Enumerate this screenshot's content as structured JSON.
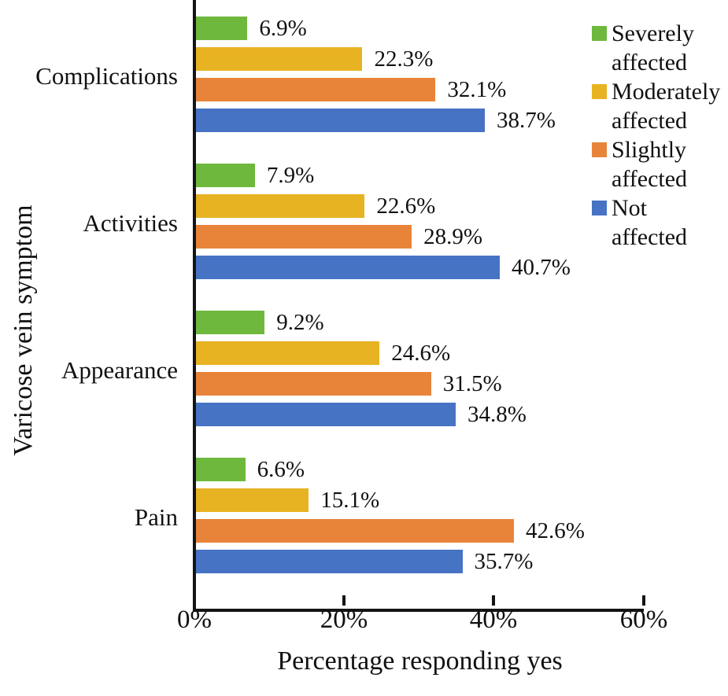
{
  "chart_data": {
    "type": "bar",
    "orientation": "horizontal",
    "xlabel": "Percentage responding yes",
    "ylabel": "Varicose vein symptom",
    "xlim": [
      0,
      60
    ],
    "xticks": [
      "0%",
      "20%",
      "40%",
      "60%"
    ],
    "grid": false,
    "legend_position": "top-right",
    "categories": [
      "Complications",
      "Activities",
      "Appearance",
      "Pain"
    ],
    "series": [
      {
        "name": "Severely affected",
        "color": "#6EB83E",
        "values": [
          6.9,
          7.9,
          9.2,
          6.6
        ],
        "labels": [
          "6.9%",
          "7.9%",
          "9.2%",
          "6.6%"
        ]
      },
      {
        "name": "Moderately affected",
        "color": "#E8B322",
        "values": [
          22.3,
          22.6,
          24.6,
          15.1
        ],
        "labels": [
          "22.3%",
          "22.6%",
          "24.6%",
          "15.1%"
        ]
      },
      {
        "name": "Slightly affected",
        "color": "#E8843A",
        "values": [
          32.1,
          28.9,
          31.5,
          42.6
        ],
        "labels": [
          "32.1%",
          "28.9%",
          "31.5%",
          "42.6%"
        ]
      },
      {
        "name": "Not affected",
        "color": "#4673C4",
        "values": [
          38.7,
          40.7,
          34.8,
          35.7
        ],
        "labels": [
          "38.7%",
          "40.7%",
          "34.8%",
          "35.7%"
        ]
      }
    ],
    "legend": {
      "items": [
        {
          "name": "Severely affected",
          "line1": "Severely",
          "line2": "affected",
          "color": "#6EB83E"
        },
        {
          "name": "Moderately affected",
          "line1": "Moderately",
          "line2": "affected",
          "color": "#E8B322"
        },
        {
          "name": "Slightly affected",
          "line1": "Slightly",
          "line2": "affected",
          "color": "#E8843A"
        },
        {
          "name": "Not affected",
          "line1": "Not",
          "line2": "affected",
          "color": "#4673C4"
        }
      ]
    }
  }
}
